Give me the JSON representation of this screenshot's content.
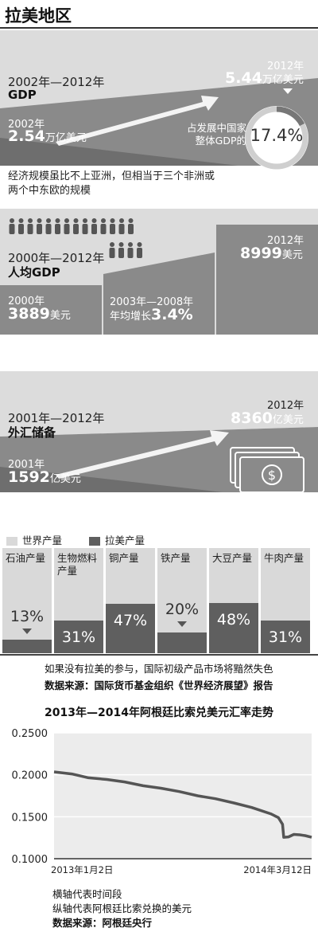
{
  "title": "拉美地区",
  "gdp": {
    "period": "2002年—2012年",
    "label": "GDP",
    "start_year": "2002年",
    "start_value": "2.54",
    "start_unit": "万亿美元",
    "end_year": "2012年",
    "end_value": "5.44",
    "end_unit": "万亿美元",
    "share_label_1": "占发展中国家",
    "share_label_2": "整体GDP的",
    "share_value": "17.4%",
    "share_fraction": 0.174,
    "note_1": "经济规模虽比不上亚洲，但相当于三个非洲或",
    "note_2": "两个中东欧的规模"
  },
  "per_capita": {
    "period": "2000年—2012年",
    "label": "人均GDP",
    "start_year": "2000年",
    "start_value": "3889",
    "start_unit": "美元",
    "mid_period": "2003年—2008年",
    "mid_label": "年均增长",
    "mid_value": "3.4%",
    "end_year": "2012年",
    "end_value": "8999",
    "end_unit": "美元"
  },
  "reserves": {
    "period": "2001年—2012年",
    "label": "外汇储备",
    "start_year": "2001年",
    "start_value": "1592",
    "start_unit": "亿美元",
    "end_year": "2012年",
    "end_value": "8360",
    "end_unit": "亿美元"
  },
  "production": {
    "legend_world": "世界产量",
    "legend_latam": "拉美产量",
    "color_world": "#d9d9d9",
    "color_latam": "#5f5f5f",
    "items": [
      {
        "label": "石油产量",
        "value": "13%",
        "share": 0.13
      },
      {
        "label": "生物燃料产量",
        "value": "31%",
        "share": 0.31
      },
      {
        "label": "铜产量",
        "value": "47%",
        "share": 0.47
      },
      {
        "label": "铁产量",
        "value": "20%",
        "share": 0.2
      },
      {
        "label": "大豆产量",
        "value": "48%",
        "share": 0.48
      },
      {
        "label": "牛肉产量",
        "value": "31%",
        "share": 0.31
      }
    ],
    "note": "如果没有拉美的参与，国际初级产品市场将黯然失色",
    "source": "数据来源：国际货币基金组织《世界经济展望》报告"
  },
  "chart_data": {
    "type": "line",
    "title": "2013年—2014年阿根廷比索兑美元汇率走势",
    "xlabel": "",
    "ylabel": "",
    "x_start": "2013年1月2日",
    "x_end": "2014年3月12日",
    "yticks": [
      "0.2500",
      "0.2000",
      "0.1500",
      "0.1000"
    ],
    "ylim": [
      0.1,
      0.25
    ],
    "grid": true,
    "series": [
      {
        "x": [
          "2013-01-02",
          "2013-02-01",
          "2013-03-01",
          "2013-04-01",
          "2013-05-01",
          "2013-06-01",
          "2013-07-01",
          "2013-08-01",
          "2013-09-01",
          "2013-10-01",
          "2013-11-01",
          "2013-12-01",
          "2014-01-02",
          "2014-01-15",
          "2014-01-22",
          "2014-01-24",
          "2014-02-01",
          "2014-02-10",
          "2014-02-20",
          "2014-03-01",
          "2014-03-12"
        ],
        "values": [
          0.2035,
          0.201,
          0.1965,
          0.1945,
          0.1915,
          0.187,
          0.184,
          0.18,
          0.175,
          0.1715,
          0.1665,
          0.161,
          0.1535,
          0.149,
          0.141,
          0.1255,
          0.126,
          0.129,
          0.1285,
          0.1275,
          0.1255
        ]
      }
    ],
    "note_1": "横轴代表时间段",
    "note_2": "纵轴代表阿根廷比索兑换的美元",
    "source": "数据来源：阿根廷央行"
  }
}
